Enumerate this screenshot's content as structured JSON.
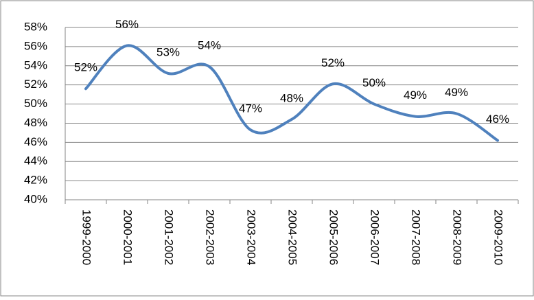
{
  "chart_data": {
    "type": "line",
    "categories": [
      "1999-2000",
      "2000-2001",
      "2001-2002",
      "2002-2003",
      "2003-2004",
      "2004-2005",
      "2005-2006",
      "2006-2007",
      "2007-2008",
      "2008-2009",
      "2009-2010"
    ],
    "values": [
      51.6,
      56.1,
      53.2,
      53.9,
      47.3,
      48.4,
      52.1,
      50.0,
      48.7,
      49.0,
      46.2
    ],
    "value_labels": [
      "52%",
      "56%",
      "53%",
      "54%",
      "47%",
      "48%",
      "52%",
      "50%",
      "49%",
      "49%",
      "46%"
    ],
    "color": "#4f81bd",
    "ylim": [
      40,
      58
    ],
    "yticks": [
      {
        "value": 40,
        "label": "40%"
      },
      {
        "value": 42,
        "label": "42%"
      },
      {
        "value": 44,
        "label": "44%"
      },
      {
        "value": 46,
        "label": "46%"
      },
      {
        "value": 48,
        "label": "48%"
      },
      {
        "value": 50,
        "label": "50%"
      },
      {
        "value": 52,
        "label": "52%"
      },
      {
        "value": 54,
        "label": "54%"
      },
      {
        "value": 56,
        "label": "56%"
      },
      {
        "value": 58,
        "label": "58%"
      }
    ],
    "grid": true,
    "smooth": true
  }
}
